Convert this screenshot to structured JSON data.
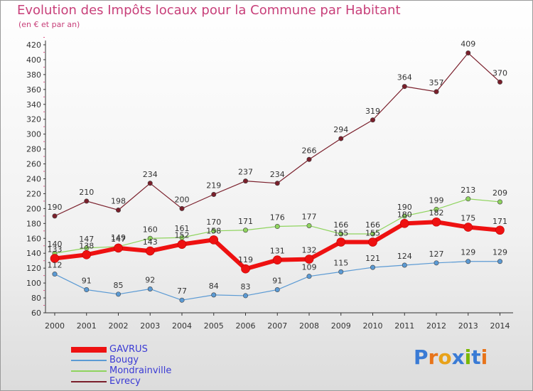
{
  "title": "Evolution des Impôts locaux pour la Commune par Habitant",
  "subtitle": "(en € et par an)",
  "logo": {
    "text": "Proxiti"
  },
  "chart_data": {
    "type": "line",
    "x": [
      "2000",
      "2001",
      "2002",
      "2003",
      "2004",
      "2005",
      "2006",
      "2007",
      "2008",
      "2009",
      "2010",
      "2011",
      "2012",
      "2013",
      "2014"
    ],
    "ylim": [
      60,
      420
    ],
    "yticks": [
      "60",
      "80",
      "100",
      "120",
      "140",
      "160",
      "180",
      "200",
      "220",
      "240",
      "260",
      "280",
      "300",
      "320",
      "340",
      "360",
      "380",
      "400",
      "420"
    ],
    "grid": false,
    "legend_position": "bottom-left",
    "series": [
      {
        "name": "Evrecy",
        "color": "#7a1f2b",
        "width": 1.2,
        "values": [
          190,
          210,
          198,
          234,
          200,
          219,
          237,
          234,
          266,
          294,
          319,
          364,
          357,
          409,
          370
        ],
        "labels": [
          "190",
          "210",
          "198",
          "234",
          "200",
          "219",
          "237",
          "234",
          "266",
          "294",
          "319",
          "364",
          "357",
          "409",
          "370"
        ]
      },
      {
        "name": "Mondrainville",
        "color": "#8fd45e",
        "width": 1.2,
        "values": [
          140,
          147,
          149,
          160,
          161,
          170,
          171,
          176,
          177,
          166,
          166,
          190,
          199,
          213,
          209
        ],
        "labels": [
          "140",
          "147",
          "149",
          "160",
          "161",
          "170",
          "171",
          "176",
          "177",
          "166",
          "166",
          "190",
          "199",
          "213",
          "209"
        ]
      },
      {
        "name": "Bougy",
        "color": "#5b9ad4",
        "width": 1.2,
        "values": [
          112,
          91,
          85,
          92,
          77,
          84,
          83,
          91,
          109,
          115,
          121,
          124,
          127,
          129,
          129
        ],
        "labels": [
          "112",
          "91",
          "85",
          "92",
          "77",
          "84",
          "83",
          "91",
          "109",
          "115",
          "121",
          "124",
          "127",
          "129",
          "129"
        ]
      },
      {
        "name": "GAVRUS",
        "color": "#ee1111",
        "width": 6,
        "values": [
          133,
          138,
          147,
          143,
          152,
          158,
          119,
          131,
          132,
          155,
          155,
          180,
          182,
          175,
          171
        ],
        "labels": [
          "133",
          "138",
          "147",
          "143",
          "152",
          "158",
          "119",
          "131",
          "132",
          "155",
          "155",
          "180",
          "182",
          "175",
          "171"
        ]
      }
    ]
  }
}
